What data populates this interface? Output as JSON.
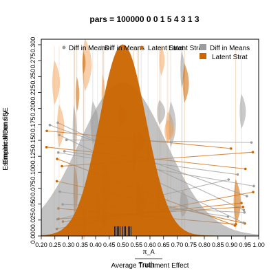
{
  "chart_data": {
    "type": "violin",
    "title": "pars = 100000 0 0 1 5 4 3 1 3",
    "xlabel": "Average Treatment Effect",
    "xlabel_overlap": "Truth",
    "x_annotation": "π_A",
    "ylabel": "Empirical Density",
    "ylabel_overlap": "Estimator Mean / SE",
    "colors": {
      "diff_in_means": "#9c9c9c",
      "latent_strat": "#cc6600",
      "latent_strat_light": "#f2a860"
    },
    "legend_overlap_labels": [
      "Diff in Means",
      "Diff in Means",
      "Latent Strat",
      "Latent Strat"
    ],
    "x_ticks": [
      "0.20",
      "0.25",
      "0.30",
      "0.35",
      "0.40",
      "0.45",
      "0.50",
      "0.55",
      "0.60",
      "0.65",
      "0.70",
      "0.75",
      "0.80",
      "0.85",
      "0.90",
      "0.95",
      "1.00"
    ],
    "y_ticks": [
      "0.000",
      "0.025",
      "0.050",
      "0.075",
      "0.100",
      "0.125",
      "0.150",
      "0.175",
      "0.200",
      "0.225",
      "0.250",
      "0.275",
      "0.300"
    ],
    "series": [
      {
        "name": "Diff in Means",
        "color": "#9c9c9c",
        "shape": "density",
        "mean": 0.5,
        "sd": 0.16,
        "peak": 0.24
      },
      {
        "name": "Latent Strat",
        "color": "#cc6600",
        "shape": "density",
        "mean": 0.5,
        "sd": 0.085,
        "peak": 0.3
      }
    ],
    "legend": {
      "position": "top-right",
      "entries": [
        "Diff in Means",
        "Latent Strat"
      ]
    }
  }
}
